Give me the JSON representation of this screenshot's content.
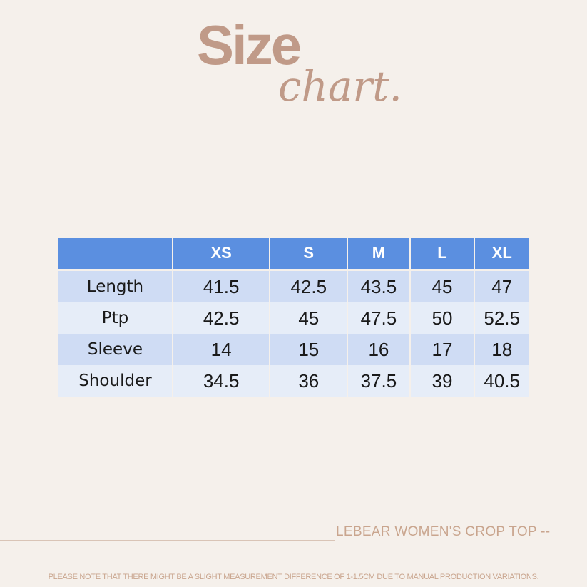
{
  "title": {
    "main": "Size",
    "sub": "chart."
  },
  "table": {
    "headers": [
      "",
      "XS",
      "S",
      "M",
      "L",
      "XL"
    ],
    "rows": [
      {
        "label": "Length",
        "values": [
          "41.5",
          "42.5",
          "43.5",
          "45",
          "47"
        ]
      },
      {
        "label": "Ptp",
        "values": [
          "42.5",
          "45",
          "47.5",
          "50",
          "52.5"
        ]
      },
      {
        "label": "Sleeve",
        "values": [
          "14",
          "15",
          "16",
          "17",
          "18"
        ]
      },
      {
        "label": "Shoulder",
        "values": [
          "34.5",
          "36",
          "37.5",
          "39",
          "40.5"
        ]
      }
    ]
  },
  "product_name": "LEBEAR WOMEN'S CROP TOP --",
  "note": "PLEASE NOTE THAT THERE MIGHT BE A SLIGHT MEASUREMENT DIFFERENCE OF 1-1.5CM DUE TO MANUAL PRODUCTION VARIATIONS.",
  "colors": {
    "background": "#f5f0eb",
    "accent": "#c09a88",
    "header": "#5b8fe0",
    "row_dark": "#cfdcf4",
    "row_light": "#e6edf8"
  }
}
